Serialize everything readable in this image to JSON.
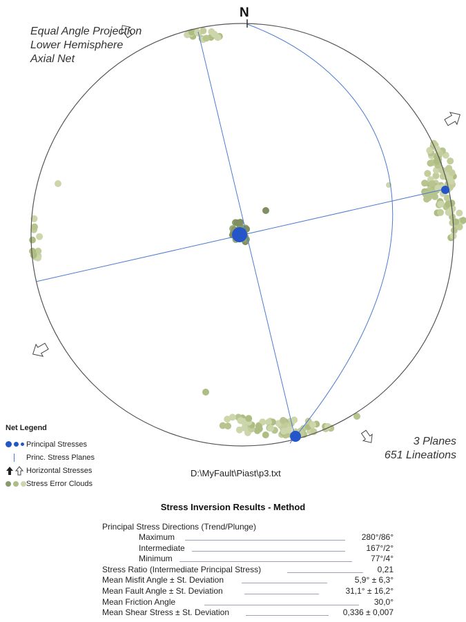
{
  "projection": {
    "line1": "Equal Angle Projection",
    "line2": "Lower Hemisphere",
    "line3": "Axial Net"
  },
  "north_label": "N",
  "summary": {
    "planes": "3 Planes",
    "lineations": "651 Lineations"
  },
  "file_path": "D:\\MyFault\\Piast\\p3.txt",
  "legend": {
    "title": "Net Legend",
    "items": [
      {
        "label": "Principal Stresses",
        "symbol": "principal-stress-dots"
      },
      {
        "label": "Princ. Stress Planes",
        "symbol": "stress-plane-line"
      },
      {
        "label": "Horizontal Stresses",
        "symbol": "horizontal-stress-arrows"
      },
      {
        "label": "Stress Error Clouds",
        "symbol": "error-cloud-dots"
      }
    ]
  },
  "colors": {
    "principal": "#2456c9",
    "planes": "#4a7bd0",
    "cloud_dark": "#8a9a6a",
    "cloud_mid": "#aebd84",
    "cloud_light": "#cdd6aa",
    "net": "#555555"
  },
  "results": {
    "title": "Stress Inversion Results -  Method",
    "directions_header": "Principal Stress Directions (Trend/Plunge)",
    "rows": [
      {
        "label": "Maximum",
        "value": "280°/86°",
        "indent": true
      },
      {
        "label": "Intermediate",
        "value": "167°/2°",
        "indent": true
      },
      {
        "label": "Minimum",
        "value": "77°/4°",
        "indent": true
      },
      {
        "label": "Stress Ratio (Intermediate Principal Stress)",
        "value": "0,21",
        "indent": false
      },
      {
        "label": "Mean Misfit Angle ± St. Deviation",
        "value": "5,9° ± 6,3°",
        "indent": false
      },
      {
        "label": "Mean Fault Angle ± St. Deviation",
        "value": "31,1° ± 16,2°",
        "indent": false
      },
      {
        "label": "Mean Friction Angle",
        "value": "30,0°",
        "indent": false
      },
      {
        "label": "Mean Shear Stress ± St. Deviation",
        "value": "0,336 ± 0,007",
        "indent": false
      }
    ]
  }
}
